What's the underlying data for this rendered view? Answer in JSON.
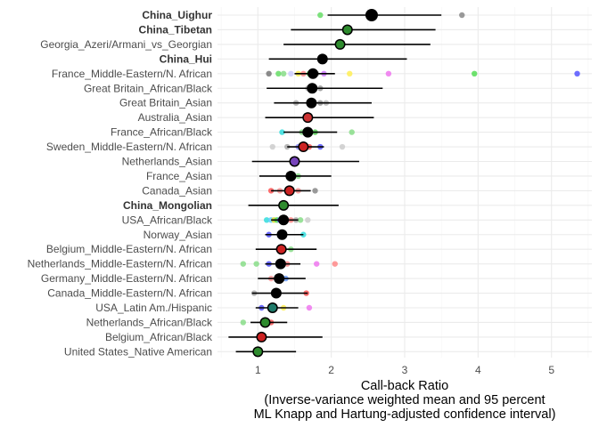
{
  "chart_data": {
    "type": "forest",
    "xlabel_lines": [
      "Call-back Ratio",
      "(Inverse-variance weighted mean and 95 percent",
      "ML Knapp and Hartung-adjusted confidence interval)"
    ],
    "xlim": [
      0.45,
      5.55
    ],
    "x_ticks": [
      1,
      2,
      3,
      4,
      5
    ],
    "grid": true,
    "rows": [
      {
        "label": "China_Uighur",
        "bold": true,
        "mean": 2.55,
        "lo": 1.95,
        "hi": 3.5,
        "big": true,
        "pooled_color": "#000000",
        "studies": [
          {
            "x": 1.85,
            "c": "#66dd66"
          },
          {
            "x": 3.78,
            "c": "#888888"
          }
        ]
      },
      {
        "label": "China_Tibetan",
        "bold": true,
        "mean": 2.22,
        "lo": 1.45,
        "hi": 3.42,
        "big": false,
        "pooled_color": "#2e8b2e",
        "studies": []
      },
      {
        "label": "Georgia_Azeri/Armani_vs_Georgian",
        "bold": false,
        "mean": 2.12,
        "lo": 1.35,
        "hi": 3.35,
        "big": false,
        "pooled_color": "#2e8b2e",
        "studies": []
      },
      {
        "label": "China_Hui",
        "bold": true,
        "mean": 1.88,
        "lo": 1.15,
        "hi": 3.03,
        "big": false,
        "pooled_color": "#000000",
        "studies": []
      },
      {
        "label": "France_Middle-Eastern/N. African",
        "bold": false,
        "mean": 1.75,
        "lo": 1.5,
        "hi": 2.05,
        "big": false,
        "pooled_color": "#000000",
        "studies": [
          {
            "x": 1.15,
            "c": "#777777"
          },
          {
            "x": 1.28,
            "c": "#66dd66"
          },
          {
            "x": 1.35,
            "c": "#88dd88"
          },
          {
            "x": 1.45,
            "c": "#ccccff"
          },
          {
            "x": 1.55,
            "c": "#ffee55"
          },
          {
            "x": 1.62,
            "c": "#ff8888"
          },
          {
            "x": 1.7,
            "c": "#66dd66"
          },
          {
            "x": 1.8,
            "c": "#aaaaaa"
          },
          {
            "x": 1.9,
            "c": "#cc77ff"
          },
          {
            "x": 2.25,
            "c": "#ffee55"
          },
          {
            "x": 2.78,
            "c": "#ee77ee"
          },
          {
            "x": 3.95,
            "c": "#55dd55"
          },
          {
            "x": 5.35,
            "c": "#5555ff"
          }
        ]
      },
      {
        "label": "Great Britain_African/Black",
        "bold": false,
        "mean": 1.74,
        "lo": 1.12,
        "hi": 2.7,
        "big": false,
        "pooled_color": "#000000",
        "studies": [
          {
            "x": 1.68,
            "c": "#bbbbbb"
          },
          {
            "x": 1.85,
            "c": "#999999"
          }
        ]
      },
      {
        "label": "Great Britain_Asian",
        "bold": false,
        "mean": 1.73,
        "lo": 1.22,
        "hi": 2.55,
        "big": false,
        "pooled_color": "#000000",
        "studies": [
          {
            "x": 1.52,
            "c": "#aaaaaa"
          },
          {
            "x": 1.85,
            "c": "#999999"
          },
          {
            "x": 1.93,
            "c": "#bbbbbb"
          }
        ]
      },
      {
        "label": "Australia_Asian",
        "bold": false,
        "mean": 1.68,
        "lo": 1.1,
        "hi": 2.58,
        "big": false,
        "pooled_color": "#cc3333",
        "studies": []
      },
      {
        "label": "France_African/Black",
        "bold": false,
        "mean": 1.68,
        "lo": 1.35,
        "hi": 2.08,
        "big": false,
        "pooled_color": "#000000",
        "studies": [
          {
            "x": 1.33,
            "c": "#33dddd"
          },
          {
            "x": 1.6,
            "c": "#88dd88"
          },
          {
            "x": 1.78,
            "c": "#55cc55"
          },
          {
            "x": 2.28,
            "c": "#88dd88"
          }
        ]
      },
      {
        "label": "Sweden_Middle-Eastern/N. African",
        "bold": false,
        "mean": 1.62,
        "lo": 1.4,
        "hi": 1.9,
        "big": false,
        "pooled_color": "#cc2222",
        "studies": [
          {
            "x": 1.2,
            "c": "#cccccc"
          },
          {
            "x": 1.4,
            "c": "#aaaaaa"
          },
          {
            "x": 1.55,
            "c": "#8888ff"
          },
          {
            "x": 1.7,
            "c": "#ff5555"
          },
          {
            "x": 1.85,
            "c": "#5555ff"
          },
          {
            "x": 2.15,
            "c": "#cccccc"
          }
        ]
      },
      {
        "label": "Netherlands_Asian",
        "bold": false,
        "mean": 1.5,
        "lo": 0.92,
        "hi": 2.38,
        "big": false,
        "pooled_color": "#7744bb",
        "studies": []
      },
      {
        "label": "France_Asian",
        "bold": false,
        "mean": 1.45,
        "lo": 1.02,
        "hi": 2.0,
        "big": false,
        "pooled_color": "#000000",
        "studies": [
          {
            "x": 1.55,
            "c": "#88dd88"
          }
        ]
      },
      {
        "label": "Canada_Asian",
        "bold": false,
        "mean": 1.43,
        "lo": 1.18,
        "hi": 1.72,
        "big": false,
        "pooled_color": "#cc2222",
        "studies": [
          {
            "x": 1.18,
            "c": "#ff5555"
          },
          {
            "x": 1.3,
            "c": "#ff9999"
          },
          {
            "x": 1.55,
            "c": "#ff9999"
          },
          {
            "x": 1.78,
            "c": "#888888"
          }
        ]
      },
      {
        "label": "China_Mongolian",
        "bold": true,
        "mean": 1.35,
        "lo": 0.87,
        "hi": 2.1,
        "big": false,
        "pooled_color": "#2e8b2e",
        "studies": []
      },
      {
        "label": "USA_African/Black",
        "bold": false,
        "mean": 1.35,
        "lo": 1.18,
        "hi": 1.55,
        "big": false,
        "pooled_color": "#000000",
        "studies": [
          {
            "x": 1.12,
            "c": "#33dddd"
          },
          {
            "x": 1.18,
            "c": "#66ccff"
          },
          {
            "x": 1.22,
            "c": "#dddd33"
          },
          {
            "x": 1.26,
            "c": "#55dd55"
          },
          {
            "x": 1.3,
            "c": "#5555ff"
          },
          {
            "x": 1.38,
            "c": "#cc77ff"
          },
          {
            "x": 1.45,
            "c": "#ff8888"
          },
          {
            "x": 1.52,
            "c": "#aaaaaa"
          },
          {
            "x": 1.58,
            "c": "#88dd88"
          },
          {
            "x": 1.68,
            "c": "#cccccc"
          }
        ]
      },
      {
        "label": "Norway_Asian",
        "bold": false,
        "mean": 1.33,
        "lo": 1.1,
        "hi": 1.62,
        "big": false,
        "pooled_color": "#000000",
        "studies": [
          {
            "x": 1.15,
            "c": "#5555ff"
          },
          {
            "x": 1.62,
            "c": "#33dddd"
          }
        ]
      },
      {
        "label": "Belgium_Middle-Eastern/N. African",
        "bold": false,
        "mean": 1.32,
        "lo": 0.97,
        "hi": 1.8,
        "big": false,
        "pooled_color": "#cc2222",
        "studies": [
          {
            "x": 1.28,
            "c": "#ff8888"
          },
          {
            "x": 1.45,
            "c": "#88dd88"
          }
        ]
      },
      {
        "label": "Netherlands_Middle-Eastern/N. African",
        "bold": false,
        "mean": 1.31,
        "lo": 1.1,
        "hi": 1.58,
        "big": false,
        "pooled_color": "#000000",
        "studies": [
          {
            "x": 0.8,
            "c": "#88dd88"
          },
          {
            "x": 0.98,
            "c": "#88dd88"
          },
          {
            "x": 1.15,
            "c": "#5555ff"
          },
          {
            "x": 1.4,
            "c": "#ff8888"
          },
          {
            "x": 1.8,
            "c": "#ee77ee"
          },
          {
            "x": 2.05,
            "c": "#ff8888"
          }
        ]
      },
      {
        "label": "Germany_Middle-Eastern/N. African",
        "bold": false,
        "mean": 1.29,
        "lo": 1.0,
        "hi": 1.65,
        "big": false,
        "pooled_color": "#000000",
        "studies": [
          {
            "x": 1.18,
            "c": "#ff9999"
          },
          {
            "x": 1.38,
            "c": "#6699ff"
          }
        ]
      },
      {
        "label": "Canada_Middle-Eastern/N. African",
        "bold": false,
        "mean": 1.25,
        "lo": 0.92,
        "hi": 1.68,
        "big": false,
        "pooled_color": "#000000",
        "studies": [
          {
            "x": 0.95,
            "c": "#aaaaaa"
          },
          {
            "x": 1.66,
            "c": "#ff5555"
          }
        ]
      },
      {
        "label": "USA_Latin Am./Hispanic",
        "bold": false,
        "mean": 1.2,
        "lo": 0.97,
        "hi": 1.55,
        "big": false,
        "pooled_color": "#1f7a6a",
        "studies": [
          {
            "x": 1.05,
            "c": "#5555ff"
          },
          {
            "x": 1.35,
            "c": "#ffee55"
          },
          {
            "x": 1.7,
            "c": "#ee77ee"
          }
        ]
      },
      {
        "label": "Netherlands_African/Black",
        "bold": false,
        "mean": 1.1,
        "lo": 0.9,
        "hi": 1.4,
        "big": false,
        "pooled_color": "#2e8b2e",
        "studies": [
          {
            "x": 0.8,
            "c": "#88dd88"
          },
          {
            "x": 1.18,
            "c": "#ff5555"
          }
        ]
      },
      {
        "label": "Belgium_African/Black",
        "bold": false,
        "mean": 1.05,
        "lo": 0.6,
        "hi": 1.88,
        "big": false,
        "pooled_color": "#cc2222",
        "studies": []
      },
      {
        "label": "United States_Native American",
        "bold": false,
        "mean": 1.0,
        "lo": 0.7,
        "hi": 1.52,
        "big": false,
        "pooled_color": "#2e8b2e",
        "studies": []
      }
    ]
  }
}
